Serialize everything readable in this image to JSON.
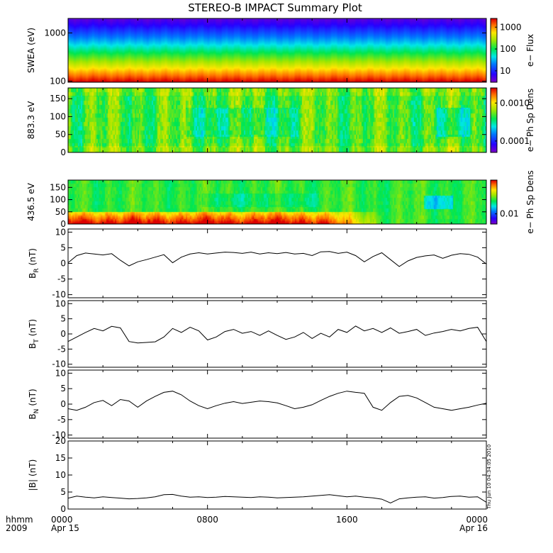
{
  "title": "STEREO-B IMPACT Summary Plot",
  "timestamp_label": "Thu Jun 10 04:34:05 2010",
  "time_axis": {
    "hhmm_label": "hhmm",
    "year_label": "2009",
    "x_range_hours": [
      0,
      24
    ],
    "ticks": [
      {
        "hours": 0,
        "time": "0000",
        "date": "Apr 15"
      },
      {
        "hours": 8,
        "time": "0800",
        "date": ""
      },
      {
        "hours": 16,
        "time": "1600",
        "date": ""
      },
      {
        "hours": 24,
        "time": "0000",
        "date": "Apr 16"
      }
    ]
  },
  "colors": {
    "line": "#000000",
    "frame": "#000000",
    "background": "#ffffff"
  },
  "chart_data": [
    {
      "type": "heatmap",
      "panel": "swea-energy",
      "ylabel": "SWEA (eV)",
      "y_scale": "log",
      "ylim": [
        95,
        2000
      ],
      "y_ticks": [
        {
          "v": 1000,
          "label": "1000"
        },
        {
          "v": 100,
          "label": "100"
        }
      ],
      "colorbar_label": "e− Flux",
      "colorbar_scale": "log",
      "colorbar_ticks": [
        {
          "v": 1000,
          "label": "1000"
        },
        {
          "v": 100,
          "label": "100"
        },
        {
          "v": 10,
          "label": "10"
        }
      ],
      "colorbar_range": [
        3,
        2500
      ],
      "energy_profile": "flux decreasing with energy: red/orange near 100 eV, yellow/green near 300 eV, cyan/blue near 600 eV, purple near 2000 eV"
    },
    {
      "type": "heatmap",
      "panel": "pad-883",
      "ylabel": "883.3 eV",
      "ylim": [
        0,
        180
      ],
      "y_ticks": [
        {
          "v": 0,
          "label": "0"
        },
        {
          "v": 50,
          "label": "50"
        },
        {
          "v": 100,
          "label": "100"
        },
        {
          "v": 150,
          "label": "150"
        }
      ],
      "colorbar_label": "e− Ph Sp Dens",
      "colorbar_scale": "log",
      "colorbar_ticks": [
        {
          "v": 0.001,
          "label": "0.0010"
        },
        {
          "v": 0.0001,
          "label": "0.0001"
        }
      ],
      "colorbar_range": [
        5e-05,
        0.0025
      ]
    },
    {
      "type": "heatmap",
      "panel": "pad-436",
      "ylabel": "436.5 eV",
      "ylim": [
        0,
        180
      ],
      "y_ticks": [
        {
          "v": 0,
          "label": "0"
        },
        {
          "v": 50,
          "label": "50"
        },
        {
          "v": 100,
          "label": "100"
        },
        {
          "v": 150,
          "label": "150"
        }
      ],
      "colorbar_label": "e− Ph Sp Dens",
      "colorbar_scale": "log",
      "colorbar_ticks": [
        {
          "v": 0.01,
          "label": "0.01"
        }
      ],
      "colorbar_range": [
        0.005,
        0.1
      ]
    },
    {
      "type": "line",
      "panel": "br",
      "ylabel_main": "B",
      "ylabel_sub": "R",
      "ylabel_unit": "(nT)",
      "ylim": [
        -11,
        11
      ],
      "y_ticks": [
        10,
        5,
        0,
        -5,
        -10
      ],
      "x_hours": [
        0,
        0.5,
        1,
        1.5,
        2,
        2.5,
        3,
        3.5,
        4,
        4.5,
        5,
        5.5,
        6,
        6.5,
        7,
        7.5,
        8,
        8.5,
        9,
        9.5,
        10,
        10.5,
        11,
        11.5,
        12,
        12.5,
        13,
        13.5,
        14,
        14.5,
        15,
        15.5,
        16,
        16.5,
        17,
        17.5,
        18,
        18.5,
        19,
        19.5,
        20,
        20.5,
        21,
        21.5,
        22,
        22.5,
        23,
        23.5,
        24
      ],
      "values": [
        0.2,
        2.5,
        3.3,
        3.0,
        2.7,
        3.1,
        1.0,
        -0.8,
        0.5,
        1.2,
        2.0,
        2.8,
        0.2,
        2.0,
        3.0,
        3.4,
        3.0,
        3.3,
        3.6,
        3.5,
        3.2,
        3.6,
        3.0,
        3.4,
        3.1,
        3.5,
        3.0,
        3.2,
        2.5,
        3.7,
        3.8,
        3.2,
        3.6,
        2.5,
        0.5,
        2.2,
        3.4,
        1.2,
        -1.0,
        0.8,
        1.9,
        2.4,
        2.7,
        1.6,
        2.6,
        3.1,
        2.9,
        2.0,
        -0.2
      ]
    },
    {
      "type": "line",
      "panel": "bt",
      "ylabel_main": "B",
      "ylabel_sub": "T",
      "ylabel_unit": "(nT)",
      "ylim": [
        -11,
        11
      ],
      "y_ticks": [
        10,
        5,
        0,
        -5,
        -10
      ],
      "x_hours": [
        0,
        0.5,
        1,
        1.5,
        2,
        2.5,
        3,
        3.5,
        4,
        4.5,
        5,
        5.5,
        6,
        6.5,
        7,
        7.5,
        8,
        8.5,
        9,
        9.5,
        10,
        10.5,
        11,
        11.5,
        12,
        12.5,
        13,
        13.5,
        14,
        14.5,
        15,
        15.5,
        16,
        16.5,
        17,
        17.5,
        18,
        18.5,
        19,
        19.5,
        20,
        20.5,
        21,
        21.5,
        22,
        22.5,
        23,
        23.5,
        24
      ],
      "values": [
        -2.5,
        -1.0,
        0.5,
        1.8,
        1.0,
        2.5,
        2.0,
        -2.5,
        -3.0,
        -2.8,
        -2.6,
        -1.0,
        1.8,
        0.5,
        2.2,
        1.0,
        -2.0,
        -1.0,
        0.8,
        1.5,
        0.2,
        0.8,
        -0.5,
        1.0,
        -0.5,
        -1.8,
        -1.0,
        0.5,
        -1.5,
        0.2,
        -1.0,
        1.5,
        0.5,
        2.6,
        1.0,
        1.8,
        0.5,
        2.0,
        0.2,
        0.8,
        1.5,
        -0.5,
        0.3,
        0.8,
        1.5,
        1.0,
        1.8,
        2.2,
        -2.5
      ]
    },
    {
      "type": "line",
      "panel": "bn",
      "ylabel_main": "B",
      "ylabel_sub": "N",
      "ylabel_unit": "(nT)",
      "ylim": [
        -11,
        11
      ],
      "y_ticks": [
        10,
        5,
        0,
        -5,
        -10
      ],
      "x_hours": [
        0,
        0.5,
        1,
        1.5,
        2,
        2.5,
        3,
        3.5,
        4,
        4.5,
        5,
        5.5,
        6,
        6.5,
        7,
        7.5,
        8,
        8.5,
        9,
        9.5,
        10,
        10.5,
        11,
        11.5,
        12,
        12.5,
        13,
        13.5,
        14,
        14.5,
        15,
        15.5,
        16,
        16.5,
        17,
        17.5,
        18,
        18.5,
        19,
        19.5,
        20,
        20.5,
        21,
        21.5,
        22,
        22.5,
        23,
        23.5,
        24
      ],
      "values": [
        -1.5,
        -2.0,
        -1.0,
        0.5,
        1.2,
        -0.5,
        1.5,
        1.0,
        -1.0,
        1.0,
        2.5,
        3.8,
        4.2,
        3.0,
        1.0,
        -0.5,
        -1.5,
        -0.5,
        0.3,
        0.8,
        0.2,
        0.6,
        1.0,
        0.8,
        0.4,
        -0.5,
        -1.5,
        -1.0,
        -0.2,
        1.2,
        2.5,
        3.5,
        4.2,
        3.8,
        3.5,
        -1.0,
        -2.0,
        0.5,
        2.5,
        2.8,
        2.0,
        0.5,
        -1.0,
        -1.5,
        -2.0,
        -1.5,
        -1.0,
        -0.3,
        0.3
      ]
    },
    {
      "type": "line",
      "panel": "bmag",
      "ylabel_main": "|B|",
      "ylabel_sub": "",
      "ylabel_unit": "(nT)",
      "ylim": [
        0,
        20
      ],
      "y_ticks": [
        20,
        15,
        10,
        5,
        0
      ],
      "x_hours": [
        0,
        0.5,
        1,
        1.5,
        2,
        2.5,
        3,
        3.5,
        4,
        4.5,
        5,
        5.5,
        6,
        6.5,
        7,
        7.5,
        8,
        8.5,
        9,
        9.5,
        10,
        10.5,
        11,
        11.5,
        12,
        12.5,
        13,
        13.5,
        14,
        14.5,
        15,
        15.5,
        16,
        16.5,
        17,
        17.5,
        18,
        18.5,
        19,
        19.5,
        20,
        20.5,
        21,
        21.5,
        22,
        22.5,
        23,
        23.5,
        24
      ],
      "values": [
        3.2,
        3.8,
        3.5,
        3.3,
        3.6,
        3.4,
        3.2,
        3.0,
        3.1,
        3.3,
        3.6,
        4.2,
        4.3,
        3.8,
        3.5,
        3.6,
        3.4,
        3.5,
        3.7,
        3.6,
        3.5,
        3.4,
        3.6,
        3.5,
        3.3,
        3.4,
        3.5,
        3.6,
        3.8,
        4.0,
        4.2,
        3.9,
        3.6,
        3.8,
        3.5,
        3.3,
        2.9,
        1.8,
        3.0,
        3.3,
        3.5,
        3.6,
        3.2,
        3.4,
        3.7,
        3.8,
        3.5,
        3.6,
        2.0
      ]
    }
  ]
}
